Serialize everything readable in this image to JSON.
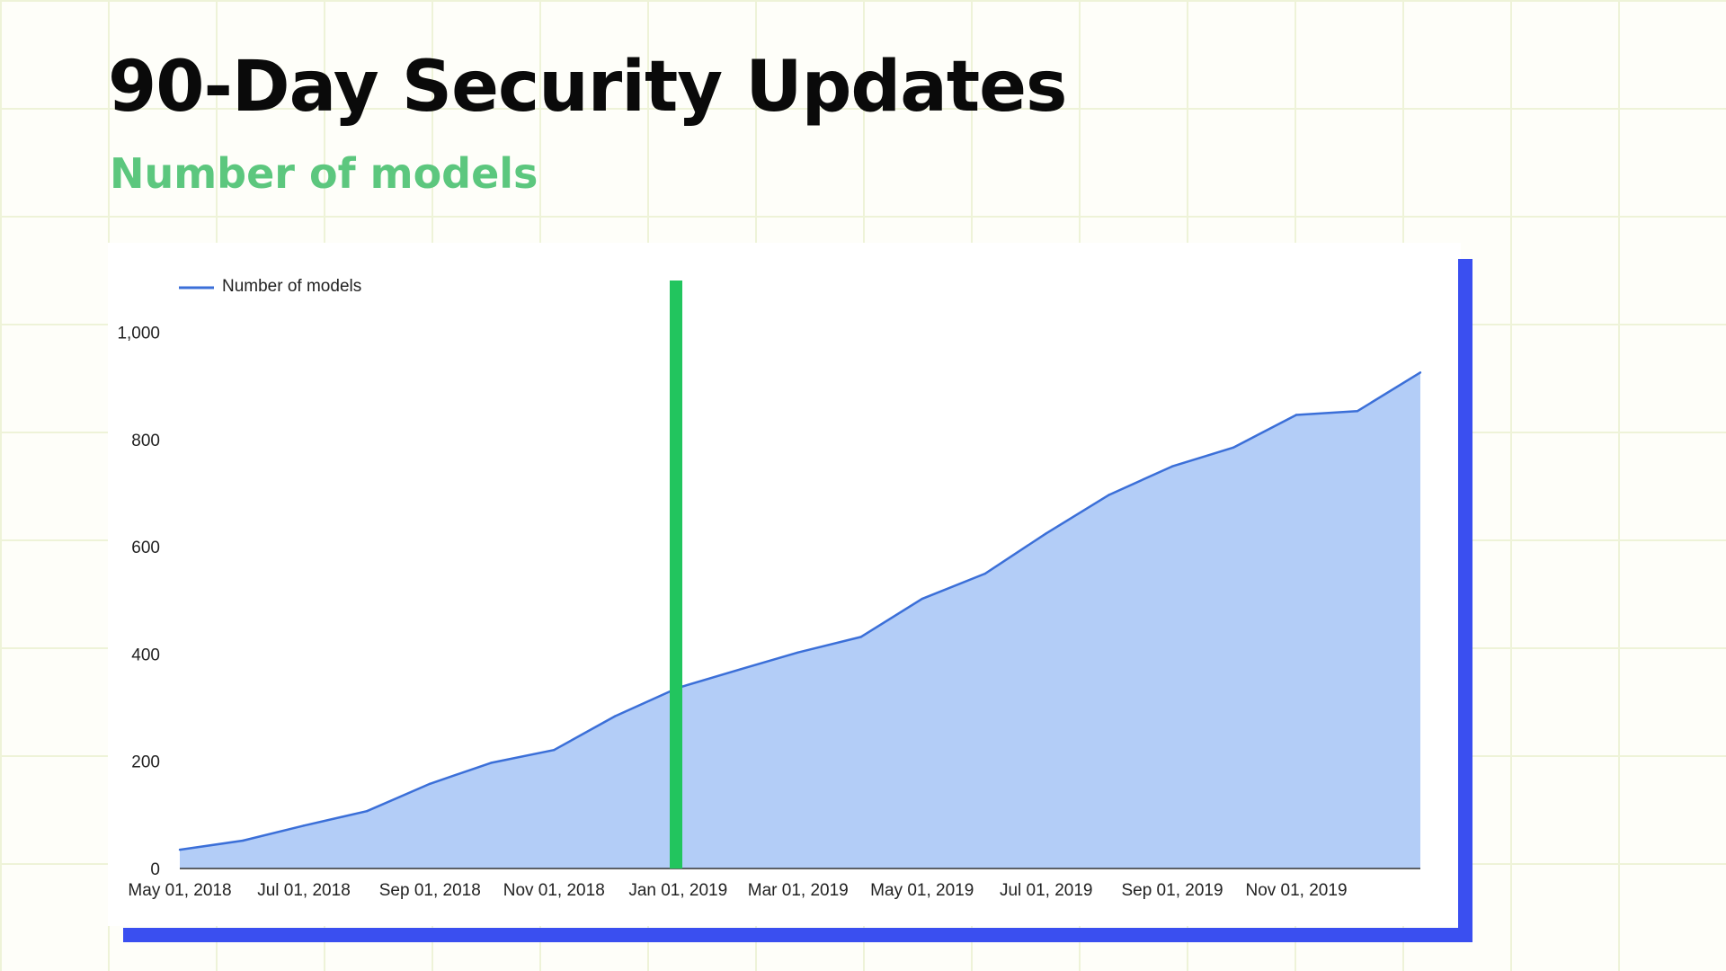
{
  "slide": {
    "title": "90-Day Security Updates",
    "subtitle": "Number of models"
  },
  "colors": {
    "title": "#0a0a0a",
    "subtitle": "#5cc77e",
    "line": "#3b6fd8",
    "area": "#b3cdf7",
    "marker": "#22c55e",
    "frame": "#3a4ff0"
  },
  "chart_data": {
    "type": "area",
    "title": "",
    "xlabel": "",
    "ylabel": "",
    "legend": {
      "position": "top-left",
      "entries": [
        "Number of models"
      ]
    },
    "grid": false,
    "ylim": [
      0,
      1100
    ],
    "yticks": [
      0,
      200,
      400,
      600,
      800,
      1000
    ],
    "ytick_labels": [
      "0",
      "200",
      "400",
      "600",
      "800",
      "1,000"
    ],
    "xlim": [
      "2018-05-01",
      "2020-01-01"
    ],
    "xticks": [
      "2018-05-01",
      "2018-07-01",
      "2018-09-01",
      "2018-11-01",
      "2019-01-01",
      "2019-03-01",
      "2019-05-01",
      "2019-07-01",
      "2019-09-01",
      "2019-11-01"
    ],
    "xtick_labels": [
      "May 01, 2018",
      "Jul 01, 2018",
      "Sep 01, 2018",
      "Nov 01, 2018",
      "Jan 01, 2019",
      "Mar 01, 2019",
      "May 01, 2019",
      "Jul 01, 2019",
      "Sep 01, 2019",
      "Nov 01, 2019"
    ],
    "x": [
      "2018-05-01",
      "2018-06-01",
      "2018-07-01",
      "2018-08-01",
      "2018-09-01",
      "2018-10-01",
      "2018-11-01",
      "2018-12-01",
      "2019-01-01",
      "2019-02-01",
      "2019-03-01",
      "2019-04-01",
      "2019-05-01",
      "2019-06-01",
      "2019-07-01",
      "2019-08-01",
      "2019-09-01",
      "2019-10-01",
      "2019-11-01",
      "2019-12-01",
      "2020-01-01"
    ],
    "series": [
      {
        "name": "Number of models",
        "values": [
          35,
          52,
          80,
          107,
          158,
          197,
          221,
          284,
          337,
          372,
          403,
          432,
          503,
          550,
          625,
          697,
          750,
          785,
          846,
          853,
          925
        ]
      }
    ],
    "marker_line": {
      "x": "2018-12-31"
    }
  }
}
